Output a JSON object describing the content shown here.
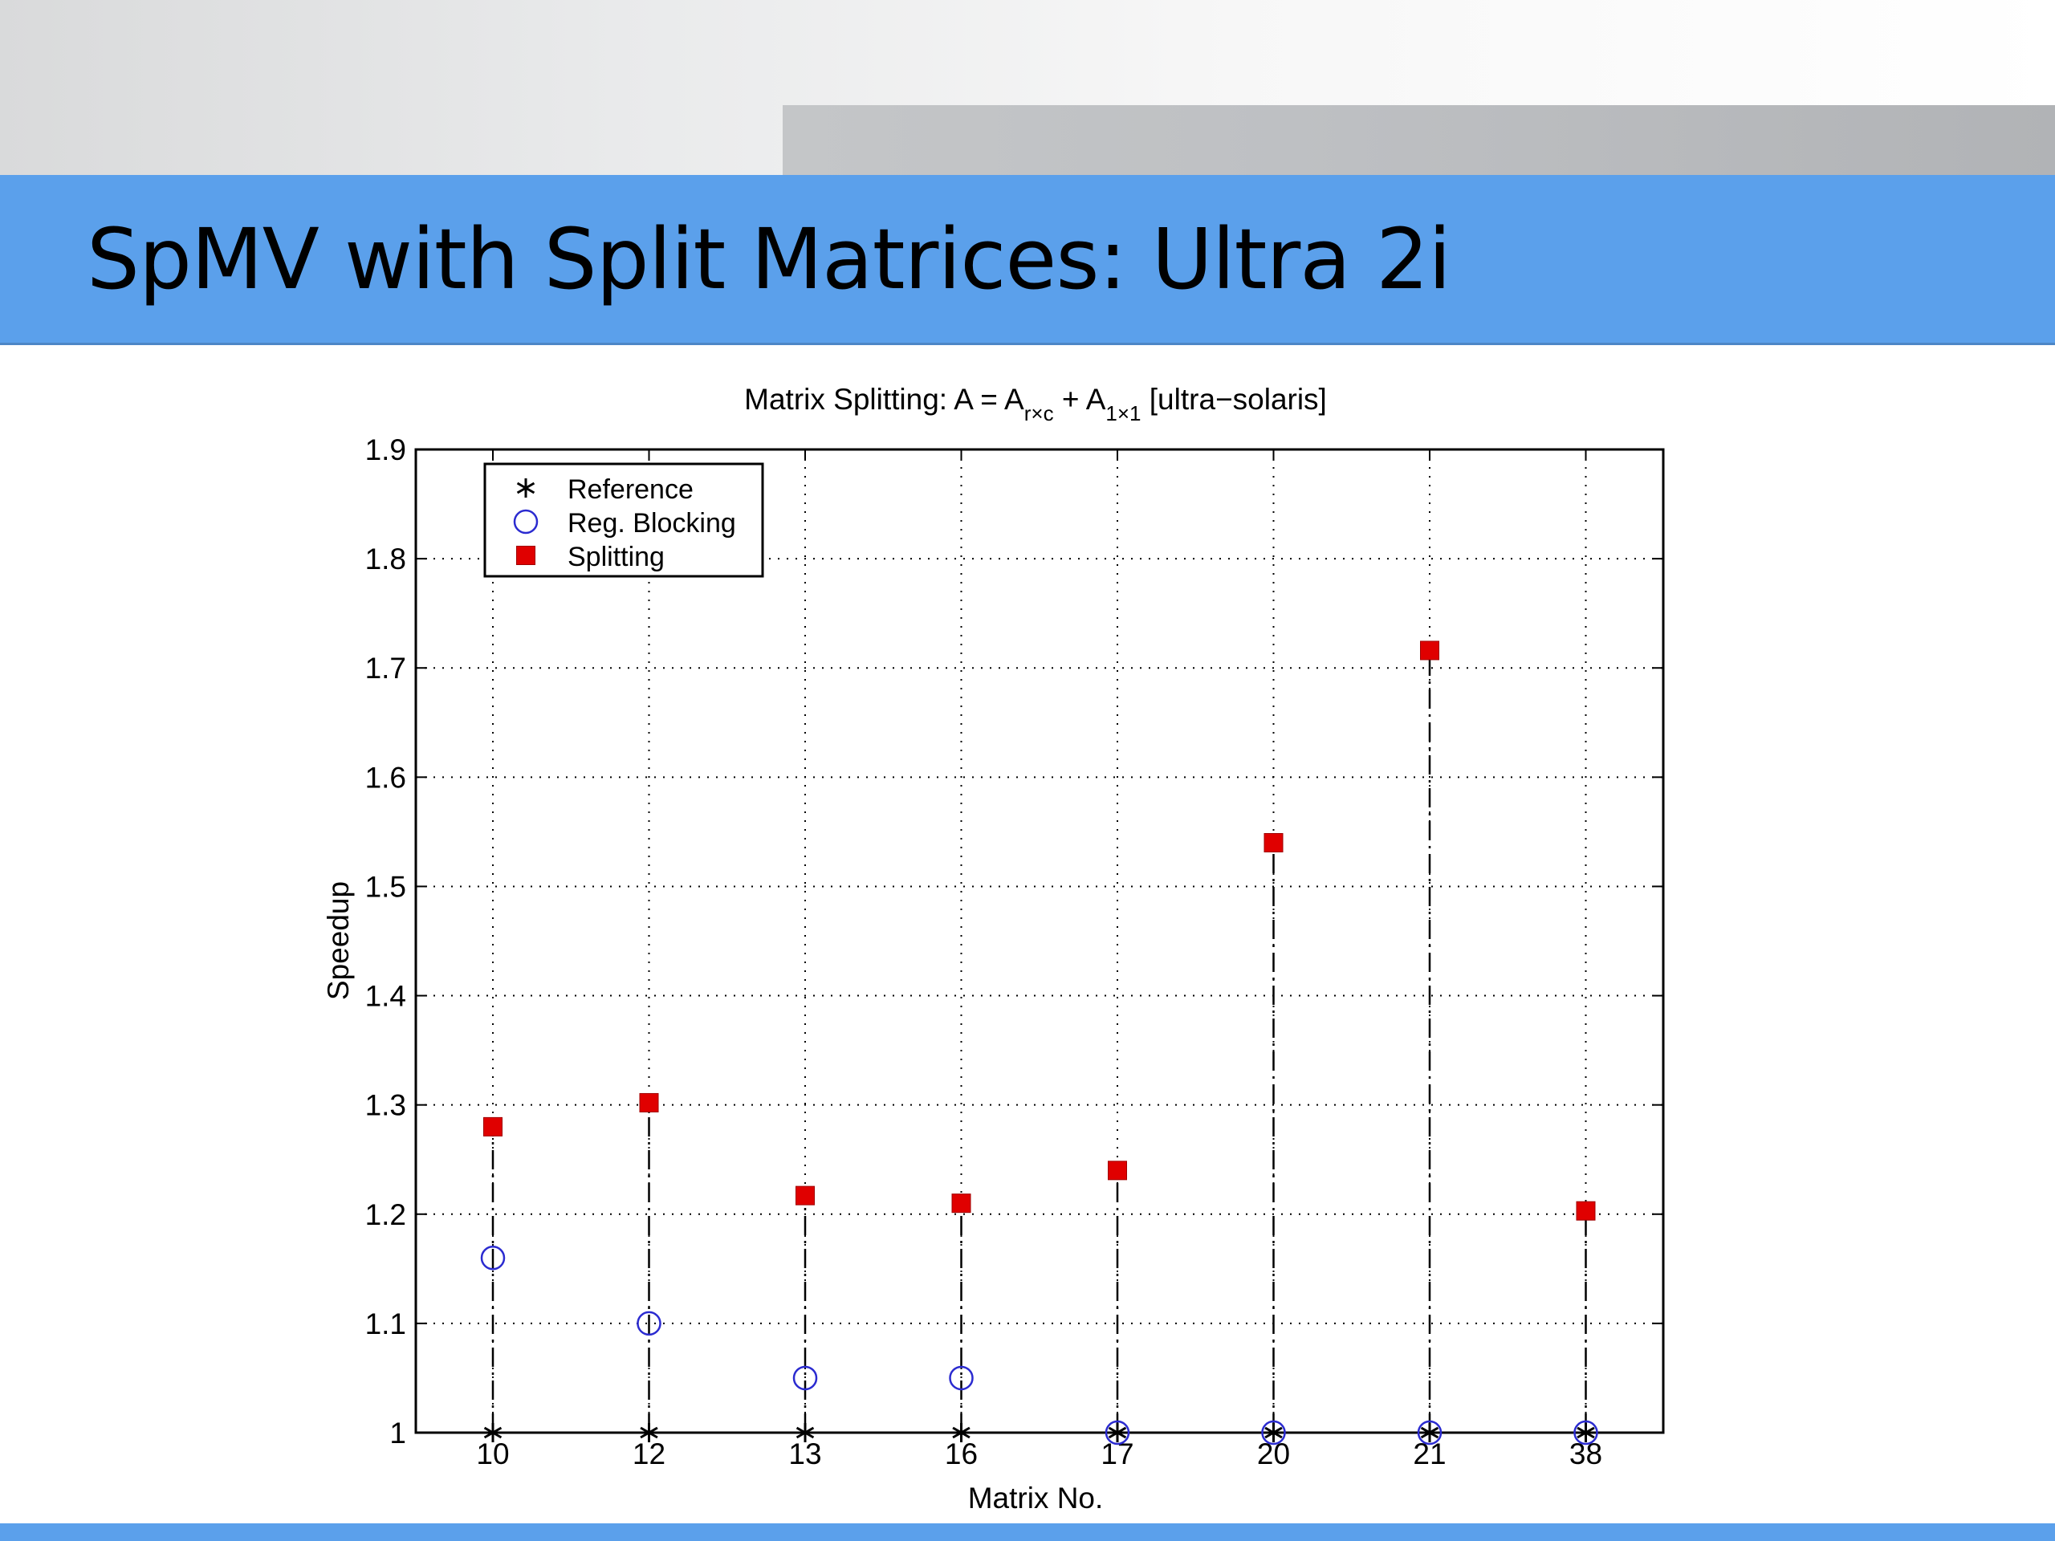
{
  "slide": {
    "title": "SpMV with Split Matrices: Ultra 2i"
  },
  "chart_data": {
    "type": "scatter",
    "title": {
      "prefix": "Matrix Splitting: A = A",
      "sub1": "r×c",
      "mid": " + A",
      "sub2": "1×1",
      "suffix": " [ultra−solaris]"
    },
    "xlabel": "Matrix No.",
    "ylabel": "Speedup",
    "categories": [
      "10",
      "12",
      "13",
      "16",
      "17",
      "20",
      "21",
      "38"
    ],
    "ylim": [
      1,
      1.9
    ],
    "yticks": [
      "1",
      "1.1",
      "1.2",
      "1.3",
      "1.4",
      "1.5",
      "1.6",
      "1.7",
      "1.8",
      "1.9"
    ],
    "grid": true,
    "legend_position": "top-left",
    "series": [
      {
        "name": "Reference",
        "marker": "asterisk",
        "color": "#000000",
        "values": [
          1,
          1,
          1,
          1,
          1,
          1,
          1,
          1
        ]
      },
      {
        "name": "Reg. Blocking",
        "marker": "circle",
        "color": "#2b2bd0",
        "values": [
          1.16,
          1.1,
          1.05,
          1.05,
          1,
          1,
          1,
          1
        ]
      },
      {
        "name": "Splitting",
        "marker": "square",
        "color": "#e00000",
        "values": [
          1.28,
          1.302,
          1.217,
          1.21,
          1.24,
          1.54,
          1.716,
          1.203
        ]
      }
    ]
  }
}
